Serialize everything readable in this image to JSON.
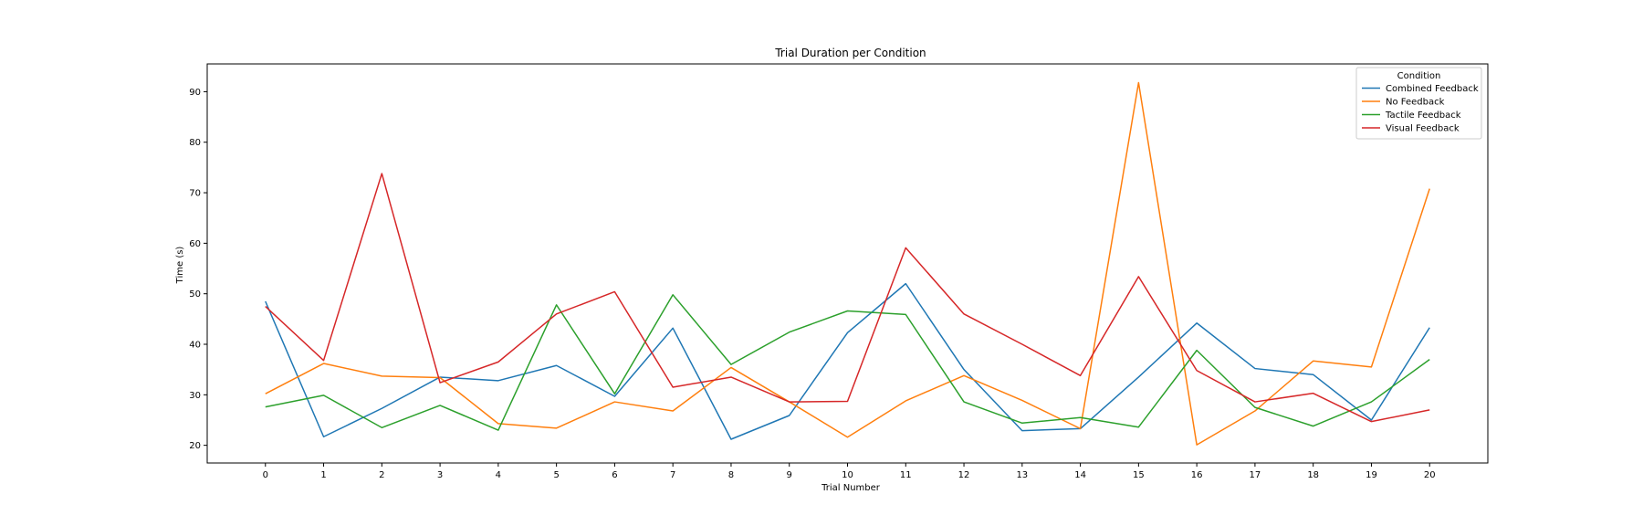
{
  "chart_data": {
    "type": "line",
    "title": "Trial Duration per Condition",
    "xlabel": "Trial Number",
    "ylabel": "Time (s)",
    "x": [
      0,
      1,
      2,
      3,
      4,
      5,
      6,
      7,
      8,
      9,
      10,
      11,
      12,
      13,
      14,
      15,
      16,
      17,
      18,
      19,
      20
    ],
    "xlim": [
      -1,
      21
    ],
    "ylim": [
      16.5,
      95.5
    ],
    "yticks": [
      20,
      30,
      40,
      50,
      60,
      70,
      80,
      90
    ],
    "grid": false,
    "legend": {
      "title": "Condition",
      "placement": "top-right"
    },
    "series": [
      {
        "name": "Combined Feedback",
        "color": "#1f77b4",
        "values": [
          48.5,
          21.7,
          27.3,
          33.5,
          32.8,
          35.8,
          29.7,
          43.2,
          21.2,
          25.9,
          42.3,
          52.0,
          35.0,
          22.9,
          23.3,
          33.5,
          44.2,
          35.2,
          34.0,
          25.0,
          43.3
        ]
      },
      {
        "name": "No Feedback",
        "color": "#ff7f0e",
        "values": [
          30.2,
          36.2,
          33.7,
          33.4,
          24.3,
          23.4,
          28.6,
          26.8,
          35.4,
          28.6,
          21.6,
          28.8,
          33.8,
          28.9,
          23.3,
          91.8,
          20.1,
          26.8,
          36.7,
          35.5,
          70.8
        ]
      },
      {
        "name": "Tactile Feedback",
        "color": "#2ca02c",
        "values": [
          27.6,
          29.9,
          23.5,
          27.9,
          23.0,
          47.8,
          30.2,
          49.8,
          36.0,
          42.4,
          46.6,
          45.9,
          28.6,
          24.4,
          25.5,
          23.6,
          38.8,
          27.5,
          23.8,
          28.6,
          37.0
        ]
      },
      {
        "name": "Visual Feedback",
        "color": "#d62728",
        "values": [
          47.5,
          36.8,
          73.8,
          32.4,
          36.5,
          46.0,
          50.4,
          31.5,
          33.5,
          28.6,
          28.7,
          59.1,
          46.0,
          40.0,
          33.8,
          53.4,
          34.8,
          28.6,
          30.3,
          24.7,
          27.0
        ]
      }
    ]
  }
}
